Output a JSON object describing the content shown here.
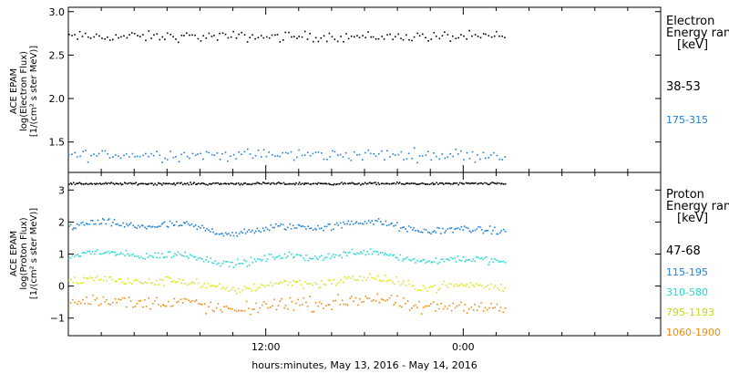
{
  "chart_data": [
    {
      "type": "scatter",
      "ylabel": [
        "ACE EPAM",
        "log(Electron Flux)",
        "[1/(cm² s ster MeV)]"
      ],
      "ylim": [
        1.15,
        3.05
      ],
      "yticks": [
        1.5,
        2.0,
        2.5,
        3.0
      ],
      "ytick_labels": [
        "1.5",
        "2.0",
        "2.5",
        "3.0"
      ],
      "legend": {
        "title": [
          "Electron",
          "Energy range",
          "[keV]"
        ],
        "placement": "right"
      },
      "series": [
        {
          "name": "38-53",
          "color": "#000000",
          "mean": 2.72,
          "spread": 0.05,
          "points": 160
        },
        {
          "name": "175-315",
          "color": "#1f7fd6",
          "mean": 1.36,
          "spread": 0.06,
          "points": 160
        }
      ]
    },
    {
      "type": "scatter",
      "ylabel": [
        "ACE EPAM",
        "log(Proton Flux)",
        "[1/(cm² s ster MeV)]"
      ],
      "ylim": [
        -1.55,
        3.55
      ],
      "yticks": [
        -1,
        0,
        1,
        2,
        3
      ],
      "ytick_labels": [
        "−1",
        "0",
        "1",
        "2",
        "3"
      ],
      "legend": {
        "title": [
          "Proton",
          "Energy range",
          "[keV]"
        ],
        "placement": "right"
      },
      "series": [
        {
          "name": "47-68",
          "color": "#000000",
          "mean": 3.22,
          "spread": 0.03,
          "points": 300
        },
        {
          "name": "115-195",
          "color": "#1f7fd6",
          "mean": 1.85,
          "spread": 0.1,
          "points": 260
        },
        {
          "name": "310-580",
          "color": "#22d8d0",
          "mean": 0.92,
          "spread": 0.1,
          "points": 260
        },
        {
          "name": "795-1193",
          "color": "#d8e614",
          "mean": 0.1,
          "spread": 0.12,
          "points": 230
        },
        {
          "name": "1060-1900",
          "color": "#f08a10",
          "mean": -0.55,
          "spread": 0.18,
          "points": 220
        }
      ]
    }
  ],
  "x_axis": {
    "label": "hours:minutes, May 13, 2016 - May 14, 2016",
    "ticks": [
      {
        "hour": 12,
        "label": "12:00"
      },
      {
        "hour": 24,
        "label": "0:00"
      }
    ],
    "xlim_hours": [
      0,
      36
    ],
    "data_end_hours": 26.5,
    "minor_tick_hours": 2
  }
}
